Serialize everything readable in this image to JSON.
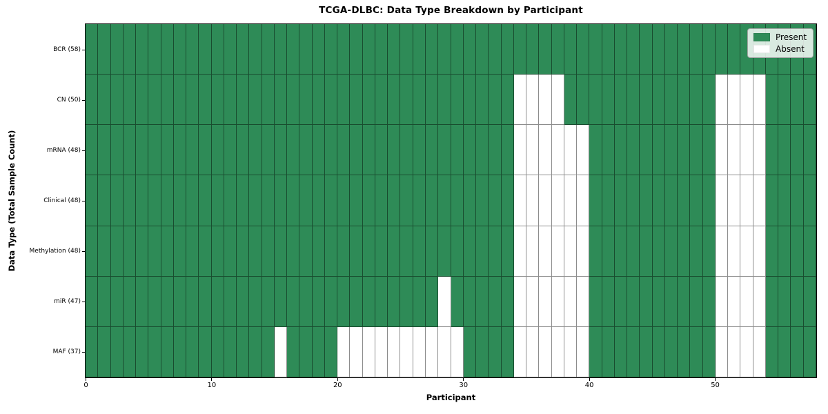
{
  "chart_data": {
    "type": "heatmap",
    "title": "TCGA-DLBC: Data Type Breakdown by Participant",
    "xlabel": "Participant",
    "ylabel": "Data Type (Total Sample Count)",
    "x_ticks": [
      0,
      10,
      20,
      30,
      40,
      50
    ],
    "n_participants": 58,
    "x_range": [
      0,
      58
    ],
    "grid": true,
    "legend_position": "upper right",
    "legend": [
      {
        "label": "Present",
        "color": "#2e8b57"
      },
      {
        "label": "Absent",
        "color": "#ffffff"
      }
    ],
    "colors": {
      "present": "#2e8b57",
      "absent": "#ffffff",
      "grid_line": "rgba(0,0,0,0.45)"
    },
    "rows": [
      {
        "label": "BCR (58)",
        "data_type": "BCR",
        "total": 58,
        "absent": []
      },
      {
        "label": "CN (50)",
        "data_type": "CN",
        "total": 50,
        "absent": [
          34,
          35,
          36,
          37,
          50,
          51,
          52,
          53
        ]
      },
      {
        "label": "mRNA (48)",
        "data_type": "mRNA",
        "total": 48,
        "absent": [
          34,
          35,
          36,
          37,
          38,
          39,
          50,
          51,
          52,
          53
        ]
      },
      {
        "label": "Clinical (48)",
        "data_type": "Clinical",
        "total": 48,
        "absent": [
          34,
          35,
          36,
          37,
          38,
          39,
          50,
          51,
          52,
          53
        ]
      },
      {
        "label": "Methylation (48)",
        "data_type": "Methylation",
        "total": 48,
        "absent": [
          34,
          35,
          36,
          37,
          38,
          39,
          50,
          51,
          52,
          53
        ]
      },
      {
        "label": "miR (47)",
        "data_type": "miR",
        "total": 47,
        "absent": [
          28,
          34,
          35,
          36,
          37,
          38,
          39,
          50,
          51,
          52,
          53
        ]
      },
      {
        "label": "MAF (37)",
        "data_type": "MAF",
        "total": 37,
        "absent": [
          15,
          20,
          21,
          22,
          23,
          24,
          25,
          26,
          27,
          28,
          29,
          34,
          35,
          36,
          37,
          38,
          39,
          50,
          51,
          52,
          53
        ]
      }
    ]
  }
}
